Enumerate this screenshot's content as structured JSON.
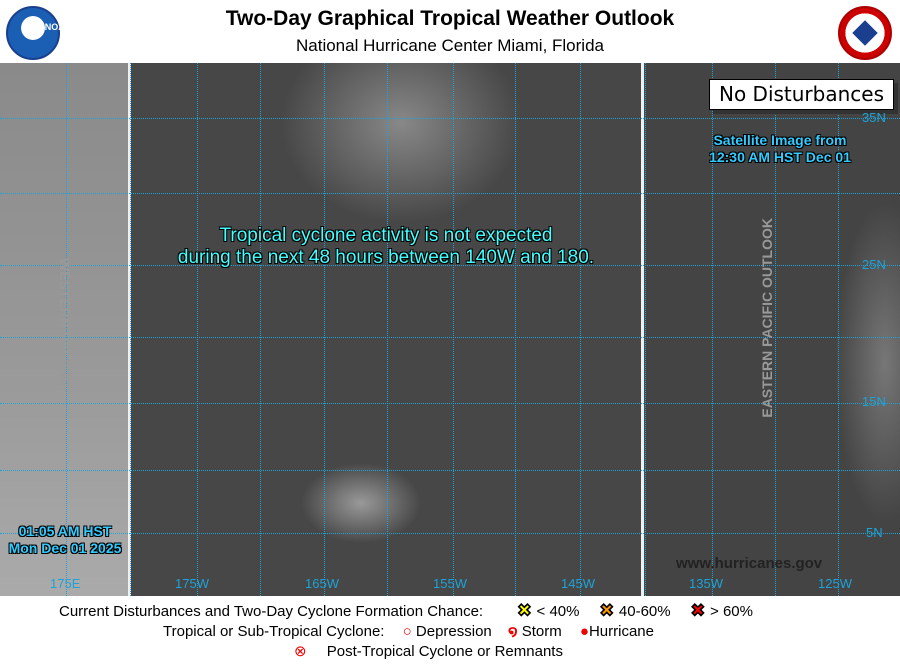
{
  "header": {
    "title": "Two-Day Graphical Tropical Weather Outlook",
    "subtitle": "National Hurricane Center  Miami, Florida",
    "noaa_logo": "NOAA",
    "nws_logo": "NATIONAL WEATHER SERVICE"
  },
  "map": {
    "message_line1": "Tropical cyclone activity is not expected",
    "message_line2": "during the next 48 hours between 140W and 180.",
    "status_box": "No Disturbances",
    "satellite_line1": "Satellite Image from",
    "satellite_line2": "12:30 AM HST Dec 01",
    "issued_line1": "01:05 AM HST",
    "issued_line2": "Mon Dec 01 2025",
    "western_label": "WESTERN PACIFIC",
    "eastern_label": "EASTERN PACIFIC OUTLOOK",
    "website": "www.hurricanes.gov",
    "lon_labels": [
      "175E",
      "175W",
      "165W",
      "155W",
      "145W",
      "135W",
      "125W"
    ],
    "lat_labels": [
      "35N",
      "25N",
      "15N",
      "5N"
    ],
    "grid_color": "#1ca3d8"
  },
  "legend": {
    "row1_label": "Current Disturbances and Two-Day Cyclone Formation Chance:",
    "low": "< 40%",
    "med": "40-60%",
    "high": "> 60%",
    "colors": {
      "low": "#ffff00",
      "med": "#ff9900",
      "high": "#ff0000"
    },
    "row2_label": "Tropical or Sub-Tropical Cyclone:",
    "depression": "Depression",
    "storm": "Storm",
    "hurricane": "Hurricane",
    "row3_label": "Post-Tropical Cyclone or Remnants"
  }
}
